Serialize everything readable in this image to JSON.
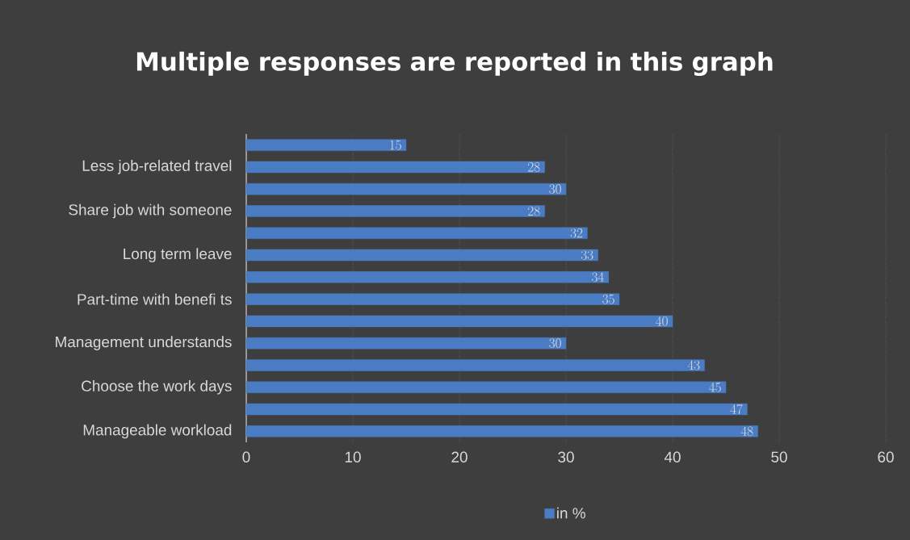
{
  "chart_data": {
    "type": "bar",
    "orientation": "horizontal",
    "title": "Multiple responses are reported in this graph",
    "categories": [
      null,
      "Less job-related travel",
      null,
      "Share job with someone",
      null,
      "Long term leave",
      null,
      "Part-time with benefi  ts",
      null,
      "Management understands",
      null,
      "Choose the work days",
      null,
      "Manageable workload"
    ],
    "series": [
      {
        "name": "in %",
        "color": "#4a7cc4",
        "values": [
          15,
          28,
          30,
          28,
          32,
          33,
          34,
          35,
          40,
          30,
          43,
          45,
          47,
          48
        ]
      }
    ],
    "xlim": [
      0,
      60
    ],
    "xticks": [
      0,
      10,
      20,
      30,
      40,
      50,
      60
    ],
    "grid": "x",
    "legend": "bottom",
    "data_labels": true
  }
}
